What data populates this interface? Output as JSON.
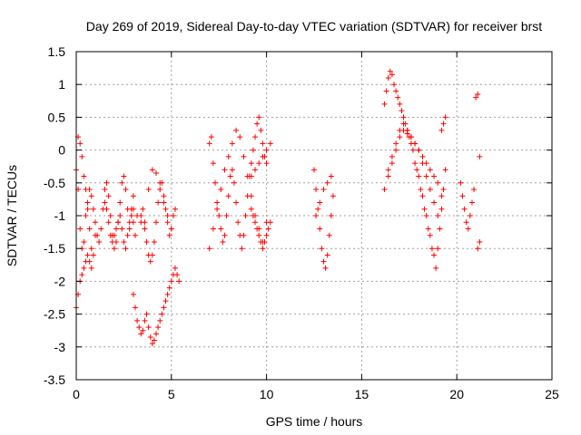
{
  "chart_data": {
    "type": "scatter",
    "title": "Day 269 of 2019, Sidereal Day-to-day VTEC variation (SDTVAR) for receiver brst",
    "xlabel": "GPS time / hours",
    "ylabel": "SDTVAR / TECUs",
    "xlim": [
      0,
      25
    ],
    "ylim": [
      -3.5,
      1.5
    ],
    "xticks": [
      0,
      5,
      10,
      15,
      20,
      25
    ],
    "yticks": [
      -3.5,
      -3,
      -2.5,
      -2,
      -1.5,
      -1,
      -0.5,
      0,
      0.5,
      1,
      1.5
    ],
    "xtick_labels": [
      "0",
      "5",
      "10",
      "15",
      "20",
      "25"
    ],
    "ytick_labels": [
      "-3.5",
      "-3",
      "-2.5",
      "-2",
      "-1.5",
      "-1",
      "-0.5",
      "0",
      "0.5",
      "1",
      "1.5"
    ],
    "grid": true,
    "marker": "+",
    "color": "#ff0000",
    "series": [
      {
        "x": [
          0.0,
          0.1,
          0.2,
          0.3,
          0.4,
          0.5,
          0.6,
          0.7,
          0.8,
          0.9,
          1.0,
          1.1,
          1.2,
          1.3,
          1.4,
          1.5,
          1.6,
          1.7,
          1.8,
          1.9,
          2.0,
          2.1,
          2.2,
          2.3,
          2.4,
          2.5,
          2.6,
          2.7,
          2.8,
          2.9,
          3.0,
          0.1,
          0.2,
          0.3,
          0.4,
          0.5,
          0.6,
          0.7,
          0.8,
          0.9,
          1.0,
          0.0,
          0.1,
          0.2,
          0.3,
          0.4,
          0.5,
          0.6,
          0.7,
          0.8,
          1.5,
          1.6,
          1.7,
          1.8,
          1.9,
          2.0,
          2.1,
          2.2,
          2.3,
          2.4,
          2.5,
          2.6,
          2.7,
          2.8,
          2.9,
          3.0,
          3.1,
          3.0,
          3.1,
          3.2,
          3.3,
          3.4,
          3.5,
          3.6,
          3.7,
          3.8,
          3.9,
          4.0,
          4.1,
          4.2,
          4.3,
          4.4,
          4.5,
          4.6,
          4.7,
          4.8,
          4.9,
          5.0,
          5.1,
          5.2,
          5.3,
          5.4,
          3.4,
          3.5,
          3.6,
          3.7,
          3.8,
          3.9,
          4.0,
          4.1,
          4.2,
          4.3,
          4.4,
          4.5,
          4.6,
          4.7,
          4.8,
          4.9,
          5.0,
          5.1,
          5.2,
          3.0,
          3.2,
          3.4,
          3.6,
          3.8,
          4.0,
          4.2,
          4.4,
          4.6,
          4.8,
          5.0,
          7.0,
          7.1,
          7.2,
          7.3,
          7.4,
          7.5,
          7.6,
          7.7,
          7.8,
          7.9,
          8.0,
          8.1,
          8.2,
          8.3,
          8.4,
          8.5,
          8.6,
          8.7,
          8.8,
          8.9,
          9.0,
          9.1,
          9.2,
          9.3,
          9.4,
          9.5,
          9.6,
          9.7,
          9.8,
          9.9,
          10.0,
          7.0,
          7.2,
          7.4,
          7.6,
          7.8,
          8.0,
          8.2,
          8.4,
          8.6,
          8.8,
          9.0,
          9.2,
          9.4,
          9.6,
          9.8,
          10.0,
          9.2,
          9.3,
          9.4,
          9.5,
          9.6,
          9.7,
          9.8,
          9.9,
          10.0,
          10.1,
          10.2,
          9.2,
          9.4,
          9.6,
          9.8,
          10.0,
          10.2,
          12.5,
          12.6,
          12.7,
          12.8,
          12.9,
          13.0,
          13.1,
          13.2,
          13.3,
          13.4,
          13.5,
          12.6,
          12.8,
          13.0,
          13.2,
          13.4,
          16.2,
          16.3,
          16.4,
          16.5,
          16.6,
          16.7,
          16.8,
          16.9,
          17.0,
          17.1,
          17.2,
          17.3,
          17.4,
          17.5,
          17.6,
          17.7,
          17.8,
          17.9,
          18.0,
          18.1,
          18.2,
          18.3,
          18.4,
          18.5,
          18.6,
          18.7,
          18.8,
          18.9,
          19.0,
          19.1,
          19.2,
          19.3,
          19.4,
          16.2,
          16.4,
          16.6,
          16.8,
          17.0,
          17.2,
          17.4,
          17.6,
          17.8,
          18.0,
          18.2,
          18.4,
          18.6,
          18.8,
          19.0,
          19.2,
          16.4,
          16.6,
          16.8,
          17.0,
          17.2,
          17.4,
          17.6,
          17.8,
          18.0,
          18.2,
          18.4,
          18.6,
          18.8,
          19.0,
          19.2,
          19.3,
          19.4,
          20.2,
          20.3,
          20.4,
          20.5,
          20.6,
          20.7,
          20.8,
          20.9,
          21.0,
          21.1,
          21.2,
          21.2,
          21.1
        ],
        "y": [
          -0.3,
          -0.6,
          -1.2,
          -1.5,
          -1.4,
          -1.0,
          -0.8,
          -0.6,
          -0.7,
          -0.9,
          -1.1,
          -1.3,
          -1.4,
          -1.2,
          -0.9,
          -0.6,
          -0.5,
          -0.7,
          -1.0,
          -1.3,
          -1.5,
          -1.4,
          -1.1,
          -0.8,
          -0.5,
          -0.4,
          -0.6,
          -0.9,
          -1.2,
          -1.0,
          -0.7,
          0.2,
          0.1,
          -0.1,
          -0.4,
          -0.6,
          -0.9,
          -1.2,
          -1.5,
          -1.6,
          -1.3,
          -2.4,
          -2.2,
          -2.0,
          -1.9,
          -1.8,
          -1.7,
          -1.6,
          -1.7,
          -1.8,
          -0.8,
          -0.9,
          -1.1,
          -1.3,
          -1.4,
          -1.3,
          -1.2,
          -1.1,
          -1.0,
          -1.2,
          -1.4,
          -1.5,
          -1.3,
          -1.1,
          -0.9,
          -1.1,
          -1.3,
          -2.2,
          -2.4,
          -2.6,
          -2.7,
          -2.8,
          -2.75,
          -2.6,
          -2.5,
          -2.7,
          -2.85,
          -2.95,
          -2.9,
          -2.8,
          -2.7,
          -2.6,
          -2.5,
          -2.4,
          -2.3,
          -2.2,
          -2.1,
          -2.0,
          -1.9,
          -1.8,
          -1.9,
          -2.0,
          -1.0,
          -0.9,
          -1.1,
          -1.4,
          -1.6,
          -1.7,
          -1.6,
          -1.4,
          -1.1,
          -0.8,
          -0.6,
          -0.5,
          -0.7,
          -0.9,
          -1.1,
          -1.3,
          -1.2,
          -1.0,
          -0.9,
          -0.9,
          -1.0,
          -1.1,
          -1.2,
          -0.6,
          -0.3,
          -0.35,
          -0.5,
          -0.8,
          -1.0,
          -1.2,
          0.1,
          0.2,
          -0.2,
          -0.5,
          -0.8,
          -1.0,
          -1.2,
          -1.4,
          -1.3,
          -1.0,
          -0.7,
          -0.4,
          -0.3,
          -0.5,
          -0.8,
          -1.1,
          -1.3,
          -1.5,
          -1.3,
          -1.0,
          -0.7,
          -0.4,
          -0.2,
          0.0,
          0.2,
          0.4,
          0.5,
          0.3,
          0.1,
          -0.1,
          -0.2,
          -1.5,
          -1.2,
          -0.9,
          -0.6,
          -0.3,
          -0.1,
          0.1,
          0.3,
          0.2,
          -0.1,
          -0.4,
          -0.7,
          -1.0,
          -1.2,
          -1.4,
          -1.1,
          -0.9,
          -1.0,
          -1.1,
          -1.2,
          -1.3,
          -1.4,
          -1.5,
          -1.4,
          -1.3,
          -1.2,
          -1.1,
          -0.4,
          -0.3,
          -0.2,
          -0.1,
          0.0,
          0.1,
          -0.3,
          -0.6,
          -0.9,
          -1.2,
          -1.5,
          -1.7,
          -1.8,
          -1.6,
          -1.3,
          -1.0,
          -0.7,
          -1.0,
          -0.8,
          -0.6,
          -0.5,
          -0.4,
          0.7,
          0.9,
          1.1,
          1.2,
          1.15,
          1.0,
          0.9,
          0.8,
          0.7,
          0.6,
          0.5,
          0.4,
          0.3,
          0.2,
          0.1,
          0.0,
          -0.2,
          -0.3,
          -0.4,
          -0.6,
          -0.7,
          -0.9,
          -1.0,
          -1.2,
          -1.3,
          -1.5,
          -1.6,
          -1.8,
          -1.5,
          -1.2,
          -0.9,
          -0.6,
          -0.3,
          -0.6,
          -0.4,
          -0.2,
          0.0,
          0.2,
          0.3,
          0.25,
          0.2,
          0.1,
          0.0,
          -0.1,
          -0.2,
          -0.3,
          -0.4,
          -0.5,
          -0.7,
          -0.3,
          -0.1,
          0.1,
          0.3,
          0.4,
          0.3,
          0.2,
          0.1,
          0.0,
          -0.2,
          -0.4,
          -0.6,
          -0.8,
          -1.0,
          0.3,
          0.4,
          0.5,
          -0.5,
          -0.7,
          -0.9,
          -1.1,
          -1.2,
          -1.0,
          -0.8,
          -0.6,
          0.8,
          0.85,
          -0.1,
          -1.4,
          -1.5
        ]
      }
    ]
  }
}
